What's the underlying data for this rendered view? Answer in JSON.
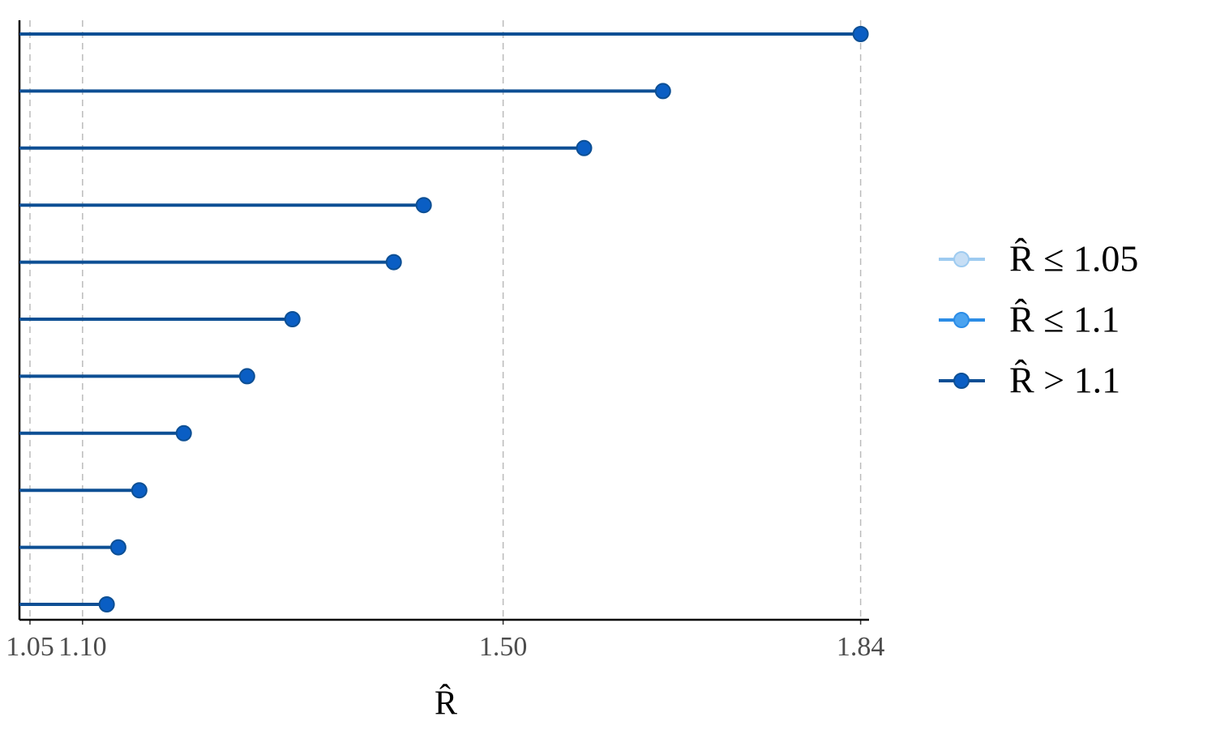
{
  "chart_data": {
    "type": "lollipop",
    "xlabel": "R̂",
    "xlim": [
      1.04,
      1.848
    ],
    "xticks": [
      1.05,
      {
        "value": 1.1,
        "label": "1.10"
      },
      {
        "value": 1.5,
        "label": "1.50"
      },
      1.84
    ],
    "grid": true,
    "legend": "right",
    "series": [
      {
        "name": "R̂ ≤ 1.05",
        "color": "#9ecbf0",
        "fill": "#c6def5",
        "values": [
          null,
          null,
          null,
          null,
          null,
          null,
          null,
          null,
          null,
          null,
          null
        ]
      },
      {
        "name": "R̂ ≤ 1.1",
        "color": "#2b8ce6",
        "fill": "#4aa3f0",
        "values": [
          null,
          null,
          null,
          null,
          null,
          null,
          null,
          null,
          null,
          null,
          null
        ]
      },
      {
        "name": "R̂ > 1.1",
        "color": "#0d4f94",
        "fill": "#0a5ec4",
        "values": [
          1.84,
          1.652,
          1.577,
          1.4245,
          1.396,
          1.2996,
          1.2565,
          1.1963,
          1.154,
          1.134,
          1.123
        ]
      }
    ]
  }
}
